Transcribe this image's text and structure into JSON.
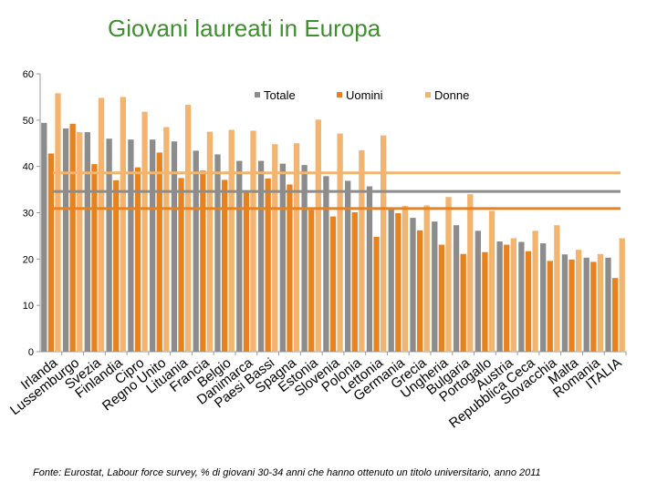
{
  "title": "Giovani laureati in Europa",
  "footnote": "Fonte: Eurostat, Labour force survey, % di giovani 30-34 anni che hanno ottenuto un titolo universitario, anno 2011",
  "colors": {
    "totale": "#8c8c8c",
    "uomini": "#e8821e",
    "donne": "#f2b46e",
    "axis": "#9a9a9a"
  },
  "chart_data": {
    "type": "bar",
    "title": "Giovani laureati in Europa",
    "xlabel": "",
    "ylabel": "",
    "ylim": [
      0,
      60
    ],
    "yticks": [
      0,
      10,
      20,
      30,
      40,
      50,
      60
    ],
    "legend_position": "top-right",
    "categories": [
      "Irlanda",
      "Lussemburgo",
      "Svezia",
      "Finlandia",
      "Cipro",
      "Regno Unito",
      "Lituania",
      "Francia",
      "Belgio",
      "Danimarca",
      "Paesi Bassi",
      "Spagna",
      "Estonia",
      "Slovenia",
      "Polonia",
      "Lettonia",
      "Germania",
      "Grecia",
      "Ungheria",
      "Bulgaria",
      "Portogallo",
      "Austria",
      "Repubblica Ceca",
      "Slovacchia",
      "Malta",
      "Romania",
      "ITALIA"
    ],
    "series": [
      {
        "name": "Totale",
        "values": [
          49.4,
          48.2,
          47.4,
          46.0,
          45.8,
          45.8,
          45.4,
          43.4,
          42.6,
          41.2,
          41.2,
          40.6,
          40.3,
          37.9,
          36.9,
          35.7,
          30.7,
          28.9,
          28.1,
          27.3,
          26.1,
          23.8,
          23.7,
          23.4,
          21.0,
          20.3,
          20.3
        ]
      },
      {
        "name": "Uomini",
        "values": [
          42.8,
          49.2,
          40.5,
          37.0,
          39.8,
          43.0,
          37.5,
          39.1,
          37.1,
          34.7,
          37.4,
          36.1,
          30.6,
          29.2,
          30.1,
          24.8,
          29.9,
          26.2,
          23.1,
          21.1,
          21.5,
          23.1,
          21.7,
          19.6,
          19.9,
          19.4,
          15.9
        ]
      },
      {
        "name": "Donne",
        "values": [
          55.8,
          47.4,
          54.8,
          55.0,
          51.8,
          48.5,
          53.3,
          47.5,
          47.9,
          47.7,
          44.8,
          45.0,
          50.1,
          47.1,
          43.5,
          46.7,
          31.5,
          31.6,
          33.4,
          34.0,
          30.4,
          24.5,
          26.1,
          27.3,
          22.0,
          21.1,
          24.5
        ]
      }
    ],
    "reference_lines": [
      {
        "series": "Donne",
        "value": 38.6
      },
      {
        "series": "Totale",
        "value": 34.6
      },
      {
        "series": "Uomini",
        "value": 30.9
      }
    ]
  }
}
